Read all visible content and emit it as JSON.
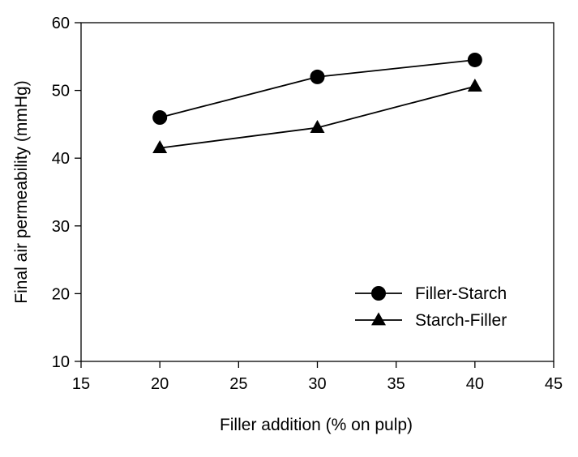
{
  "chart_data": {
    "type": "line",
    "title": "",
    "xlabel": "Filler addition (% on pulp)",
    "ylabel": "Final air permeability (mmHg)",
    "xlim": [
      15,
      45
    ],
    "ylim": [
      10,
      60
    ],
    "xticks": [
      15,
      20,
      25,
      30,
      35,
      40,
      45
    ],
    "yticks": [
      10,
      20,
      30,
      40,
      50,
      60
    ],
    "grid": false,
    "legend_position": "bottom-right",
    "x": [
      20,
      30,
      40
    ],
    "series": [
      {
        "name": "Filler-Starch",
        "marker": "circle",
        "color": "#000000",
        "values": [
          46,
          52,
          54.5
        ]
      },
      {
        "name": "Starch-Filler",
        "marker": "triangle",
        "color": "#000000",
        "values": [
          41.5,
          44.5,
          50.6
        ]
      }
    ]
  }
}
